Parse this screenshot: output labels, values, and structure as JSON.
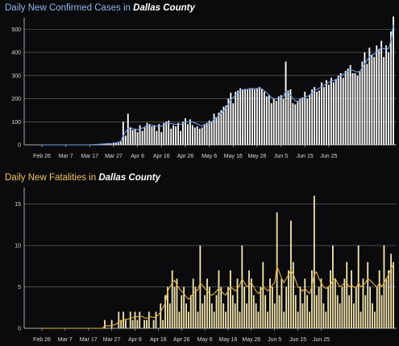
{
  "charts": [
    {
      "title_prefix": "Daily New Confirmed Cases in",
      "title_place": "Dallas County"
    },
    {
      "title_prefix": "Daily New Fatalities in",
      "title_place": "Dallas County"
    }
  ],
  "chart_data": [
    {
      "type": "bar",
      "title": "Daily New Confirmed Cases in Dallas County",
      "xlabel": "",
      "ylabel": "",
      "ylim": [
        0,
        550
      ],
      "yticks": [
        0,
        100,
        200,
        300,
        400,
        500
      ],
      "grid": true,
      "x_ticks": [
        "Feb 26",
        "Mar 7",
        "Mar 17",
        "Mar 27",
        "Apr 6",
        "Apr 16",
        "Apr 26",
        "May 6",
        "May 16",
        "May 26",
        "Jun 5",
        "Jun 15",
        "Jun 25"
      ],
      "colors": {
        "bars": "#ffffff",
        "line": "#6f9de8",
        "grid": "#9a9a9a"
      },
      "series": [
        {
          "type": "bar",
          "values": [
            0,
            0,
            0,
            0,
            0,
            0,
            0,
            0,
            0,
            0,
            0,
            0,
            0,
            0,
            0,
            0,
            0,
            0,
            0,
            0,
            0,
            1,
            1,
            2,
            2,
            3,
            4,
            5,
            6,
            3,
            10,
            8,
            12,
            15,
            100,
            40,
            135,
            75,
            65,
            70,
            55,
            85,
            60,
            75,
            95,
            90,
            80,
            85,
            60,
            90,
            55,
            95,
            100,
            105,
            70,
            85,
            80,
            95,
            60,
            100,
            115,
            90,
            110,
            85,
            75,
            80,
            70,
            75,
            90,
            95,
            105,
            100,
            135,
            120,
            140,
            150,
            165,
            170,
            200,
            225,
            180,
            230,
            235,
            245,
            240,
            240,
            240,
            245,
            245,
            240,
            245,
            250,
            240,
            230,
            210,
            215,
            180,
            200,
            190,
            210,
            215,
            200,
            360,
            235,
            240,
            180,
            175,
            190,
            200,
            205,
            230,
            200,
            215,
            240,
            250,
            230,
            235,
            270,
            250,
            280,
            260,
            290,
            270,
            285,
            300,
            310,
            290,
            320,
            330,
            345,
            310,
            310,
            300,
            320,
            360,
            400,
            350,
            420,
            390,
            380,
            430,
            415,
            450,
            380,
            430,
            400,
            490,
            555
          ]
        },
        {
          "type": "line",
          "values": [
            0,
            0,
            0,
            0,
            0,
            0,
            0,
            0,
            0,
            0,
            0,
            0,
            0,
            0,
            0,
            0,
            0,
            0,
            0,
            0,
            0,
            1,
            1,
            2,
            2,
            3,
            4,
            5,
            6,
            5,
            8,
            9,
            11,
            15,
            40,
            55,
            70,
            75,
            70,
            68,
            65,
            70,
            72,
            78,
            85,
            88,
            85,
            82,
            80,
            82,
            80,
            85,
            90,
            95,
            92,
            90,
            88,
            90,
            88,
            92,
            98,
            100,
            100,
            98,
            95,
            90,
            85,
            82,
            85,
            90,
            95,
            100,
            110,
            118,
            125,
            135,
            148,
            160,
            175,
            195,
            205,
            215,
            225,
            235,
            238,
            240,
            240,
            242,
            244,
            243,
            244,
            245,
            242,
            235,
            225,
            215,
            205,
            200,
            198,
            202,
            205,
            210,
            230,
            225,
            215,
            200,
            190,
            188,
            192,
            198,
            205,
            210,
            215,
            225,
            235,
            240,
            245,
            252,
            258,
            265,
            270,
            275,
            278,
            282,
            290,
            298,
            305,
            310,
            318,
            325,
            322,
            318,
            315,
            318,
            332,
            350,
            365,
            380,
            390,
            392,
            400,
            410,
            420,
            415,
            420,
            415,
            450,
            520
          ]
        }
      ]
    },
    {
      "type": "bar",
      "title": "Daily New Fatalities in Dallas County",
      "xlabel": "",
      "ylabel": "",
      "ylim": [
        0,
        17
      ],
      "yticks": [
        0,
        5,
        10,
        15
      ],
      "grid": true,
      "x_ticks": [
        "Feb 26",
        "Mar 7",
        "Mar 17",
        "Mar 27",
        "Apr 6",
        "Apr 16",
        "Apr 26",
        "May 6",
        "May 16",
        "May 26",
        "Jun 5",
        "Jun 15",
        "Jun 25"
      ],
      "colors": {
        "bars": "#f6e9b0",
        "line": "#e2b23a",
        "grid": "#9a9a9a"
      },
      "series": [
        {
          "type": "bar",
          "values": [
            0,
            0,
            0,
            0,
            0,
            0,
            0,
            0,
            0,
            0,
            0,
            0,
            0,
            0,
            0,
            0,
            0,
            0,
            0,
            0,
            0,
            0,
            0,
            0,
            0,
            0,
            0,
            1,
            0,
            0,
            1,
            0,
            0,
            2,
            1,
            2,
            1,
            0,
            2,
            1,
            2,
            1,
            2,
            0,
            1,
            1,
            2,
            0,
            1,
            2,
            0,
            3,
            1,
            4,
            5,
            3,
            7,
            5,
            6,
            2,
            4,
            5,
            3,
            2,
            4,
            6,
            5,
            2,
            10,
            3,
            4,
            6,
            5,
            3,
            2,
            4,
            7,
            5,
            3,
            2,
            5,
            7,
            4,
            3,
            6,
            2,
            10,
            5,
            3,
            7,
            6,
            4,
            3,
            2,
            5,
            8,
            4,
            2,
            6,
            5,
            3,
            14,
            4,
            6,
            2,
            5,
            7,
            13,
            8,
            4,
            2,
            5,
            3,
            6,
            4,
            2,
            7,
            16,
            4,
            5,
            6,
            3,
            2,
            5,
            7,
            10,
            6,
            4,
            3,
            5,
            6,
            8,
            4,
            7,
            3,
            5,
            10,
            2,
            6,
            4,
            8,
            5,
            3,
            2,
            5,
            7,
            4,
            10,
            6,
            7,
            9,
            8
          ]
        },
        {
          "type": "line",
          "values": [
            0,
            0,
            0,
            0,
            0,
            0,
            0,
            0,
            0,
            0,
            0,
            0,
            0,
            0,
            0,
            0,
            0,
            0,
            0,
            0,
            0,
            0,
            0,
            0,
            0,
            0,
            0,
            0.3,
            0.3,
            0.3,
            0.4,
            0.4,
            0.5,
            0.8,
            0.9,
            1.0,
            1.1,
            1.1,
            1.2,
            1.3,
            1.4,
            1.4,
            1.5,
            1.4,
            1.3,
            1.2,
            1.3,
            1.4,
            1.3,
            1.4,
            1.6,
            2.0,
            2.5,
            3.0,
            4.5,
            5.0,
            5.5,
            5.8,
            5.2,
            4.8,
            4.5,
            4.2,
            3.8,
            3.5,
            3.8,
            4.2,
            4.5,
            4.6,
            5.5,
            5.2,
            4.8,
            4.5,
            4.2,
            4.0,
            4.2,
            4.5,
            4.8,
            4.5,
            4.2,
            4.0,
            4.5,
            5.0,
            4.8,
            4.5,
            4.8,
            5.2,
            6.0,
            5.5,
            5.0,
            5.2,
            5.5,
            5.0,
            4.5,
            4.2,
            4.5,
            5.0,
            4.8,
            4.5,
            4.8,
            5.2,
            5.5,
            7.5,
            6.8,
            6.0,
            5.5,
            6.0,
            6.5,
            7.0,
            6.5,
            5.8,
            5.0,
            4.8,
            4.5,
            4.8,
            4.5,
            4.2,
            5.0,
            6.5,
            6.8,
            6.0,
            5.5,
            5.0,
            4.8,
            5.0,
            5.2,
            5.8,
            6.0,
            5.5,
            5.0,
            5.2,
            5.5,
            5.5,
            5.0,
            5.2,
            5.0,
            4.8,
            5.5,
            5.0,
            5.2,
            5.5,
            6.0,
            5.8,
            5.5,
            5.2,
            5.0,
            5.5,
            5.0,
            5.5,
            6.0,
            6.5,
            7.2,
            7.8
          ]
        }
      ]
    }
  ]
}
